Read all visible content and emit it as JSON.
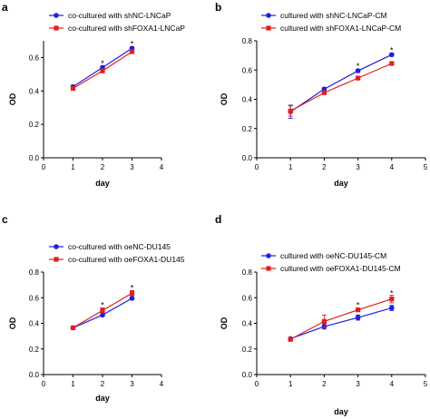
{
  "chart_data": [
    {
      "panel": "a",
      "type": "line",
      "xlabel": "day",
      "ylabel": "OD",
      "xlim": [
        0,
        4
      ],
      "ylim": [
        0,
        0.7
      ],
      "x_ticks": [
        "0",
        "1",
        "2",
        "3",
        "4"
      ],
      "y_ticks": [
        "0.0",
        "0.2",
        "0.4",
        "0.6"
      ],
      "legend_position": "top-left",
      "series": [
        {
          "name": "co-cultured with shNC-LNCaP",
          "color": "#1f1fe0",
          "marker": "circle",
          "x": [
            1,
            2,
            3
          ],
          "y": [
            0.425,
            0.54,
            0.655
          ],
          "err": [
            0.01,
            0.01,
            0.01
          ]
        },
        {
          "name": "co-cultured with shFOXA1-LNCaP",
          "color": "#e02020",
          "marker": "square",
          "x": [
            1,
            2,
            3
          ],
          "y": [
            0.415,
            0.52,
            0.635
          ],
          "err": [
            0.01,
            0.01,
            0.01
          ]
        }
      ],
      "annotations": [
        {
          "text": "*",
          "x": 2,
          "y": 0.56
        },
        {
          "text": "*",
          "x": 3,
          "y": 0.675
        }
      ]
    },
    {
      "panel": "b",
      "type": "line",
      "xlabel": "day",
      "ylabel": "OD",
      "xlim": [
        0,
        5
      ],
      "ylim": [
        0,
        0.8
      ],
      "x_ticks": [
        "0",
        "1",
        "2",
        "3",
        "4",
        "5"
      ],
      "y_ticks": [
        "0.0",
        "0.2",
        "0.4",
        "0.6",
        "0.8"
      ],
      "legend_position": "top-left",
      "series": [
        {
          "name": "cultured with shNC-LNCaP-CM",
          "color": "#1f1fe0",
          "marker": "circle",
          "x": [
            1,
            2,
            3,
            4
          ],
          "y": [
            0.315,
            0.47,
            0.595,
            0.705
          ],
          "err": [
            0.045,
            0.01,
            0.01,
            0.01
          ]
        },
        {
          "name": "cultured with shFOXA1-LNCaP-CM",
          "color": "#e02020",
          "marker": "square",
          "x": [
            1,
            2,
            3,
            4
          ],
          "y": [
            0.32,
            0.445,
            0.545,
            0.645
          ],
          "err": [
            0.035,
            0.01,
            0.01,
            0.01
          ]
        }
      ],
      "annotations": [
        {
          "text": "*",
          "x": 3,
          "y": 0.62
        },
        {
          "text": "*",
          "x": 4,
          "y": 0.73
        }
      ]
    },
    {
      "panel": "c",
      "type": "line",
      "xlabel": "day",
      "ylabel": "OD",
      "xlim": [
        0,
        4
      ],
      "ylim": [
        0,
        0.8
      ],
      "x_ticks": [
        "0",
        "1",
        "2",
        "3",
        "4"
      ],
      "y_ticks": [
        "0.0",
        "0.2",
        "0.4",
        "0.6",
        "0.8"
      ],
      "legend_position": "top-left",
      "series": [
        {
          "name": "co-cultured with oeNC-DU145",
          "color": "#1f1fe0",
          "marker": "circle",
          "x": [
            1,
            2,
            3
          ],
          "y": [
            0.365,
            0.465,
            0.595
          ],
          "err": [
            0.005,
            0.01,
            0.01
          ]
        },
        {
          "name": "co-cultured with oeFOXA1-DU145",
          "color": "#e02020",
          "marker": "square",
          "x": [
            1,
            2,
            3
          ],
          "y": [
            0.365,
            0.5,
            0.635
          ],
          "err": [
            0.005,
            0.02,
            0.02
          ]
        }
      ],
      "annotations": [
        {
          "text": "*",
          "x": 2,
          "y": 0.535
        },
        {
          "text": "*",
          "x": 3,
          "y": 0.67
        }
      ]
    },
    {
      "panel": "d",
      "type": "line",
      "xlabel": "day",
      "ylabel": "OD",
      "xlim": [
        0,
        5
      ],
      "ylim": [
        0,
        0.8
      ],
      "x_ticks": [
        "0",
        "1",
        "2",
        "3",
        "4",
        "5"
      ],
      "y_ticks": [
        "0.0",
        "0.2",
        "0.4",
        "0.6",
        "0.8"
      ],
      "legend_position": "top-left",
      "series": [
        {
          "name": "cultured with oeNC-DU145-CM",
          "color": "#1f1fe0",
          "marker": "circle",
          "x": [
            1,
            2,
            3,
            4
          ],
          "y": [
            0.28,
            0.375,
            0.445,
            0.52
          ],
          "err": [
            0.01,
            0.02,
            0.02,
            0.02
          ]
        },
        {
          "name": "cultured with oeFOXA1-DU145-CM",
          "color": "#e02020",
          "marker": "square",
          "x": [
            1,
            2,
            3,
            4
          ],
          "y": [
            0.275,
            0.415,
            0.505,
            0.59
          ],
          "err": [
            0.01,
            0.05,
            0.01,
            0.03
          ]
        }
      ],
      "annotations": [
        {
          "text": "*",
          "x": 3,
          "y": 0.535
        },
        {
          "text": "*",
          "x": 4,
          "y": 0.625
        }
      ]
    }
  ]
}
